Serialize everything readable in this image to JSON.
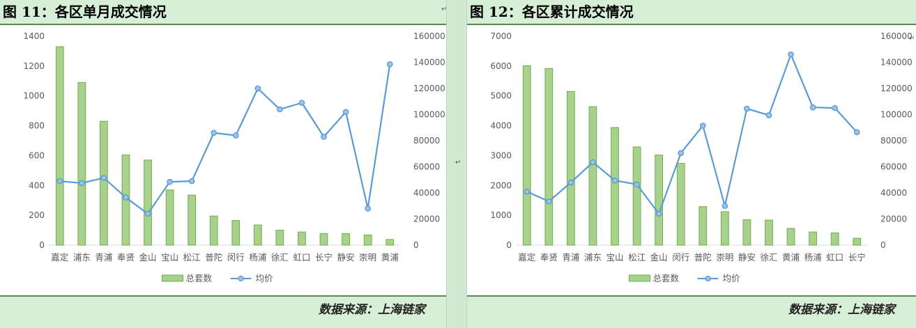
{
  "panels": [
    {
      "title": "图 11：各区单月成交情况",
      "source": "数据来源：上海链家",
      "chart_data": {
        "type": "bar",
        "combo": "bar+line (dual axis)",
        "categories": [
          "嘉定",
          "浦东",
          "青浦",
          "奉贤",
          "金山",
          "宝山",
          "松江",
          "普陀",
          "闵行",
          "杨浦",
          "徐汇",
          "虹口",
          "长宁",
          "静安",
          "崇明",
          "黄浦"
        ],
        "series": [
          {
            "name": "总套数",
            "type": "bar",
            "axis": "left",
            "color": "#a9d18e",
            "values": [
              1330,
              1090,
              830,
              605,
              570,
              370,
              335,
              195,
              165,
              135,
              100,
              88,
              78,
              78,
              68,
              38
            ]
          },
          {
            "name": "均价",
            "type": "line",
            "axis": "right",
            "color": "#5b9bd5",
            "values": [
              49000,
              47500,
              51500,
              36500,
              24000,
              48500,
              49000,
              86000,
              84000,
              120000,
              104000,
              109000,
              83000,
              102000,
              28000,
              138500
            ]
          }
        ],
        "y_left": {
          "range": [
            0,
            1400
          ],
          "ticks": [
            "0",
            "200",
            "400",
            "600",
            "800",
            "1000",
            "1200",
            "1400"
          ]
        },
        "y_right": {
          "range": [
            0,
            160000
          ],
          "ticks": [
            "0",
            "20000",
            "40000",
            "60000",
            "80000",
            "100000",
            "120000",
            "140000",
            "160000"
          ]
        },
        "legend": {
          "position": "bottom"
        },
        "grid": false
      }
    },
    {
      "title": "图 12：各区累计成交情况",
      "source": "数据来源：上海链家",
      "chart_data": {
        "type": "bar",
        "combo": "bar+line (dual axis)",
        "categories": [
          "嘉定",
          "奉贤",
          "青浦",
          "浦东",
          "宝山",
          "松江",
          "金山",
          "闵行",
          "普陀",
          "崇明",
          "静安",
          "徐汇",
          "黄浦",
          "杨浦",
          "虹口",
          "长宁"
        ],
        "series": [
          {
            "name": "总套数",
            "type": "bar",
            "axis": "left",
            "color": "#a9d18e",
            "values": [
              6010,
              5920,
              5150,
              4640,
              3940,
              3290,
              3020,
              2740,
              1290,
              1120,
              850,
              840,
              560,
              440,
              410,
              230
            ]
          },
          {
            "name": "均价",
            "type": "line",
            "axis": "right",
            "color": "#5b9bd5",
            "values": [
              41000,
              33500,
              48000,
              63500,
              49500,
              46500,
              24000,
              70500,
              91500,
              30000,
              104500,
              99500,
              146000,
              105500,
              105000,
              86500
            ]
          }
        ],
        "y_left": {
          "range": [
            0,
            7000
          ],
          "ticks": [
            "0",
            "1000",
            "2000",
            "3000",
            "4000",
            "5000",
            "6000",
            "7000"
          ]
        },
        "y_right": {
          "range": [
            0,
            160000
          ],
          "ticks": [
            "0",
            "20000",
            "40000",
            "60000",
            "80000",
            "100000",
            "120000",
            "140000",
            "160000"
          ]
        },
        "legend": {
          "position": "bottom"
        },
        "grid": false
      }
    }
  ]
}
